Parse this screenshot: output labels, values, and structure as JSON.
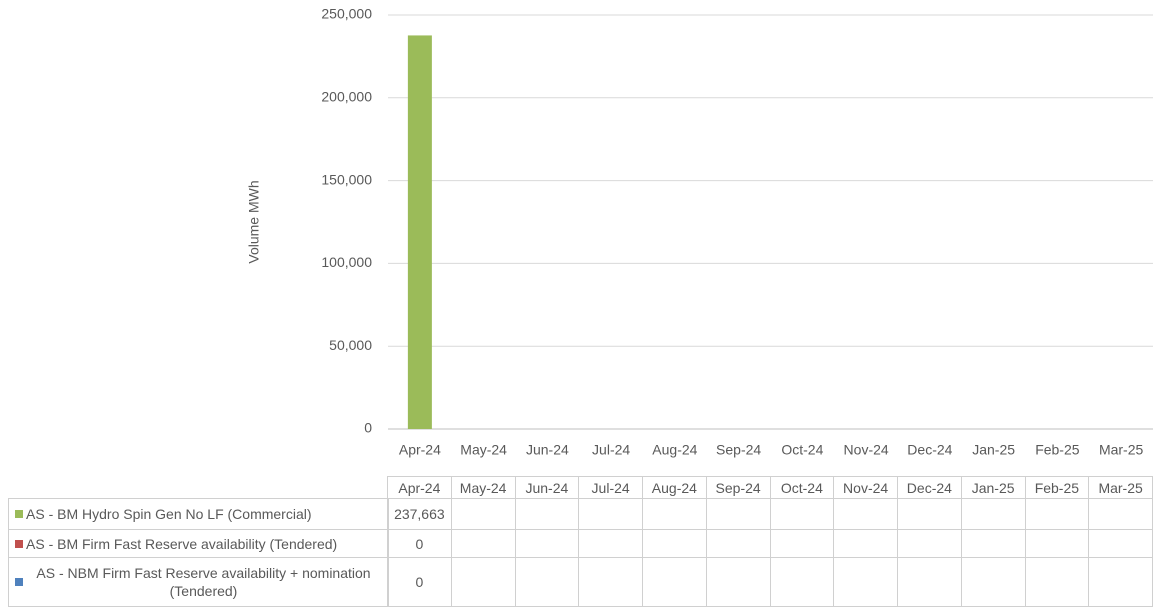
{
  "chart_data": {
    "type": "bar",
    "stacked": true,
    "y_label": "Volume MWh",
    "categories": [
      "Apr-24",
      "May-24",
      "Jun-24",
      "Jul-24",
      "Aug-24",
      "Sep-24",
      "Oct-24",
      "Nov-24",
      "Dec-24",
      "Jan-25",
      "Feb-25",
      "Mar-25"
    ],
    "series": [
      {
        "name": "AS - BM Hydro Spin Gen No LF (Commercial)",
        "color": "#9bbb59",
        "values": [
          237663,
          null,
          null,
          null,
          null,
          null,
          null,
          null,
          null,
          null,
          null,
          null
        ],
        "value_labels": [
          "237,663",
          null,
          null,
          null,
          null,
          null,
          null,
          null,
          null,
          null,
          null,
          null
        ]
      },
      {
        "name": "AS - BM Firm Fast Reserve availability (Tendered)",
        "color": "#c0504d",
        "values": [
          0,
          null,
          null,
          null,
          null,
          null,
          null,
          null,
          null,
          null,
          null,
          null
        ]
      },
      {
        "name": "AS - NBM Firm Fast Reserve availability + nomination (Tendered)",
        "color": "#4f81bd",
        "values": [
          0,
          null,
          null,
          null,
          null,
          null,
          null,
          null,
          null,
          null,
          null,
          null
        ]
      }
    ],
    "ylim": [
      0,
      250000
    ],
    "yticks": [
      0,
      {
        "value": 50000,
        "label": "50,000"
      },
      {
        "value": 100000,
        "label": "100,000"
      },
      {
        "value": 150000,
        "label": "150,000"
      },
      {
        "value": 200000,
        "label": "200,000"
      },
      {
        "value": 250000,
        "label": "250,000"
      }
    ],
    "grid": true
  }
}
